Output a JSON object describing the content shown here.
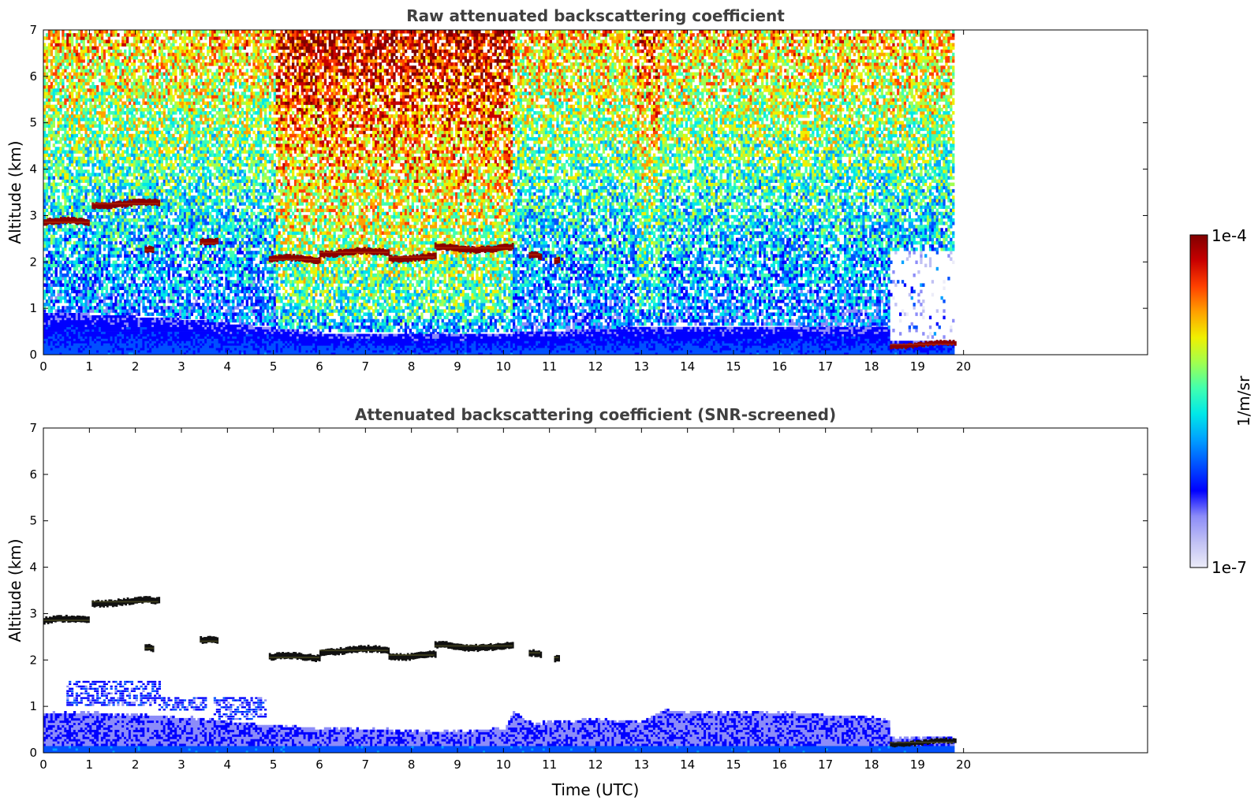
{
  "chart_data": [
    {
      "type": "heatmap",
      "title": "Raw attenuated backscattering coefficient",
      "xlabel": "",
      "ylabel": "Altitude (km)",
      "xlim": [
        0,
        24
      ],
      "ylim": [
        0,
        7
      ],
      "xticks": [
        "0",
        "1",
        "2",
        "3",
        "4",
        "5",
        "6",
        "7",
        "8",
        "9",
        "10",
        "11",
        "12",
        "13",
        "14",
        "15",
        "16",
        "17",
        "18",
        "19",
        "20"
      ],
      "yticks": [
        "0",
        "1",
        "2",
        "3",
        "4",
        "5",
        "6",
        "7"
      ],
      "data_end_hour": 19.8,
      "background_boundary_layer": [
        {
          "t": 0,
          "top": 0.9
        },
        {
          "t": 3,
          "top": 0.75
        },
        {
          "t": 6,
          "top": 0.45
        },
        {
          "t": 9,
          "top": 0.4
        },
        {
          "t": 10.2,
          "top": 0.45
        },
        {
          "t": 12.5,
          "top": 0.55
        },
        {
          "t": 14,
          "top": 0.6
        },
        {
          "t": 17,
          "top": 0.55
        },
        {
          "t": 18.35,
          "top": 0.55
        },
        {
          "t": 18.4,
          "top": 0.3
        },
        {
          "t": 19.8,
          "top": 0.3
        }
      ],
      "high_signal_periods": [
        {
          "start": 5.0,
          "end": 10.2,
          "level": "high"
        },
        {
          "start": 12.9,
          "end": 13.4,
          "level": "medium"
        }
      ],
      "cloud_layers": [
        {
          "start": 0.0,
          "end": 1.0,
          "altitude": 2.85
        },
        {
          "start": 1.05,
          "end": 2.5,
          "altitude": 3.25
        },
        {
          "start": 2.2,
          "end": 2.4,
          "altitude": 2.25
        },
        {
          "start": 3.4,
          "end": 3.8,
          "altitude": 2.4
        },
        {
          "start": 4.9,
          "end": 6.0,
          "altitude": 2.05
        },
        {
          "start": 6.0,
          "end": 7.5,
          "altitude": 2.2
        },
        {
          "start": 7.5,
          "end": 8.5,
          "altitude": 2.1
        },
        {
          "start": 8.5,
          "end": 10.2,
          "altitude": 2.3
        },
        {
          "start": 10.55,
          "end": 10.8,
          "altitude": 2.15
        },
        {
          "start": 11.1,
          "end": 11.2,
          "altitude": 2.05
        },
        {
          "start": 18.4,
          "end": 19.8,
          "altitude": 0.22
        }
      ]
    },
    {
      "type": "heatmap",
      "title": "Attenuated backscattering coefficient (SNR-screened)",
      "xlabel": "Time (UTC)",
      "ylabel": "Altitude (km)",
      "xlim": [
        0,
        24
      ],
      "ylim": [
        0,
        7
      ],
      "xticks": [
        "0",
        "1",
        "2",
        "3",
        "4",
        "5",
        "6",
        "7",
        "8",
        "9",
        "10",
        "11",
        "12",
        "13",
        "14",
        "15",
        "16",
        "17",
        "18",
        "19",
        "20"
      ],
      "yticks": [
        "0",
        "1",
        "2",
        "3",
        "4",
        "5",
        "6",
        "7"
      ],
      "data_end_hour": 19.8,
      "screened_boundary_layer": [
        {
          "t": 0,
          "top": 0.85
        },
        {
          "t": 1,
          "top": 0.85
        },
        {
          "t": 2,
          "top": 0.8
        },
        {
          "t": 3,
          "top": 0.75
        },
        {
          "t": 4,
          "top": 0.65
        },
        {
          "t": 5,
          "top": 0.55
        },
        {
          "t": 6,
          "top": 0.5
        },
        {
          "t": 7,
          "top": 0.5
        },
        {
          "t": 8,
          "top": 0.45
        },
        {
          "t": 9,
          "top": 0.45
        },
        {
          "t": 10,
          "top": 0.5
        },
        {
          "t": 10.2,
          "top": 0.85
        },
        {
          "t": 10.6,
          "top": 0.6
        },
        {
          "t": 11,
          "top": 0.65
        },
        {
          "t": 12,
          "top": 0.7
        },
        {
          "t": 13,
          "top": 0.65
        },
        {
          "t": 13.5,
          "top": 0.9
        },
        {
          "t": 14,
          "top": 0.85
        },
        {
          "t": 16,
          "top": 0.85
        },
        {
          "t": 17,
          "top": 0.8
        },
        {
          "t": 18,
          "top": 0.75
        },
        {
          "t": 18.35,
          "top": 0.7
        },
        {
          "t": 18.4,
          "top": 0.32
        },
        {
          "t": 19.8,
          "top": 0.32
        }
      ],
      "screened_aerosol_patches": [
        {
          "start": 0.5,
          "end": 2.5,
          "bottom": 1.0,
          "top": 1.55
        },
        {
          "start": 2.5,
          "end": 3.5,
          "bottom": 0.9,
          "top": 1.2
        },
        {
          "start": 3.7,
          "end": 4.8,
          "bottom": 0.7,
          "top": 1.2
        }
      ],
      "cloud_layers": [
        {
          "start": 0.0,
          "end": 1.0,
          "altitude": 2.85
        },
        {
          "start": 1.05,
          "end": 2.5,
          "altitude": 3.25
        },
        {
          "start": 2.2,
          "end": 2.4,
          "altitude": 2.25
        },
        {
          "start": 3.4,
          "end": 3.8,
          "altitude": 2.4
        },
        {
          "start": 4.9,
          "end": 6.0,
          "altitude": 2.05
        },
        {
          "start": 6.0,
          "end": 7.5,
          "altitude": 2.2
        },
        {
          "start": 7.5,
          "end": 8.5,
          "altitude": 2.1
        },
        {
          "start": 8.5,
          "end": 10.2,
          "altitude": 2.3
        },
        {
          "start": 10.55,
          "end": 10.8,
          "altitude": 2.15
        },
        {
          "start": 11.1,
          "end": 11.2,
          "altitude": 2.05
        },
        {
          "start": 18.4,
          "end": 19.8,
          "altitude": 0.22
        }
      ]
    }
  ],
  "colorbar": {
    "label": "1/m/sr",
    "min_label": "1e-7",
    "max_label": "1e-4",
    "scale": "log",
    "colormap": "jet",
    "colors": [
      "#ececf8",
      "#c0c0f4",
      "#8c8cf8",
      "#0000ff",
      "#0050ff",
      "#00a0ff",
      "#00e8e8",
      "#40ffb0",
      "#a0ff50",
      "#f0f000",
      "#ffa000",
      "#ff4000",
      "#c80000",
      "#800000"
    ]
  }
}
